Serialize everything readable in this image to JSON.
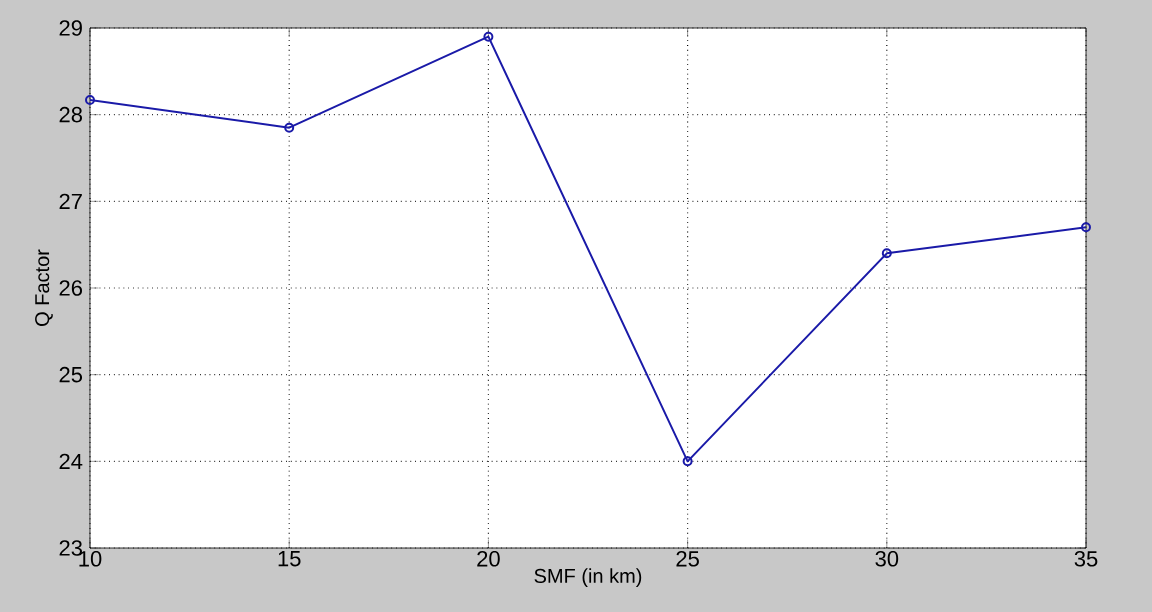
{
  "chart_data": {
    "type": "line",
    "xlabel": "SMF (in km)",
    "ylabel": "Q Factor",
    "x": [
      10,
      15,
      20,
      25,
      30,
      35
    ],
    "series": [
      {
        "color": "#1a1aa8",
        "values": [
          28.17,
          27.85,
          28.9,
          24.0,
          26.4,
          26.7
        ]
      }
    ],
    "xlim": [
      10,
      35
    ],
    "xticks": [
      10,
      15,
      20,
      25,
      30,
      35
    ],
    "ylim": [
      23,
      29
    ],
    "yticks": [
      23,
      24,
      25,
      26,
      27,
      28,
      29
    ],
    "grid": true,
    "marker": "circle",
    "line_style": "solid"
  }
}
